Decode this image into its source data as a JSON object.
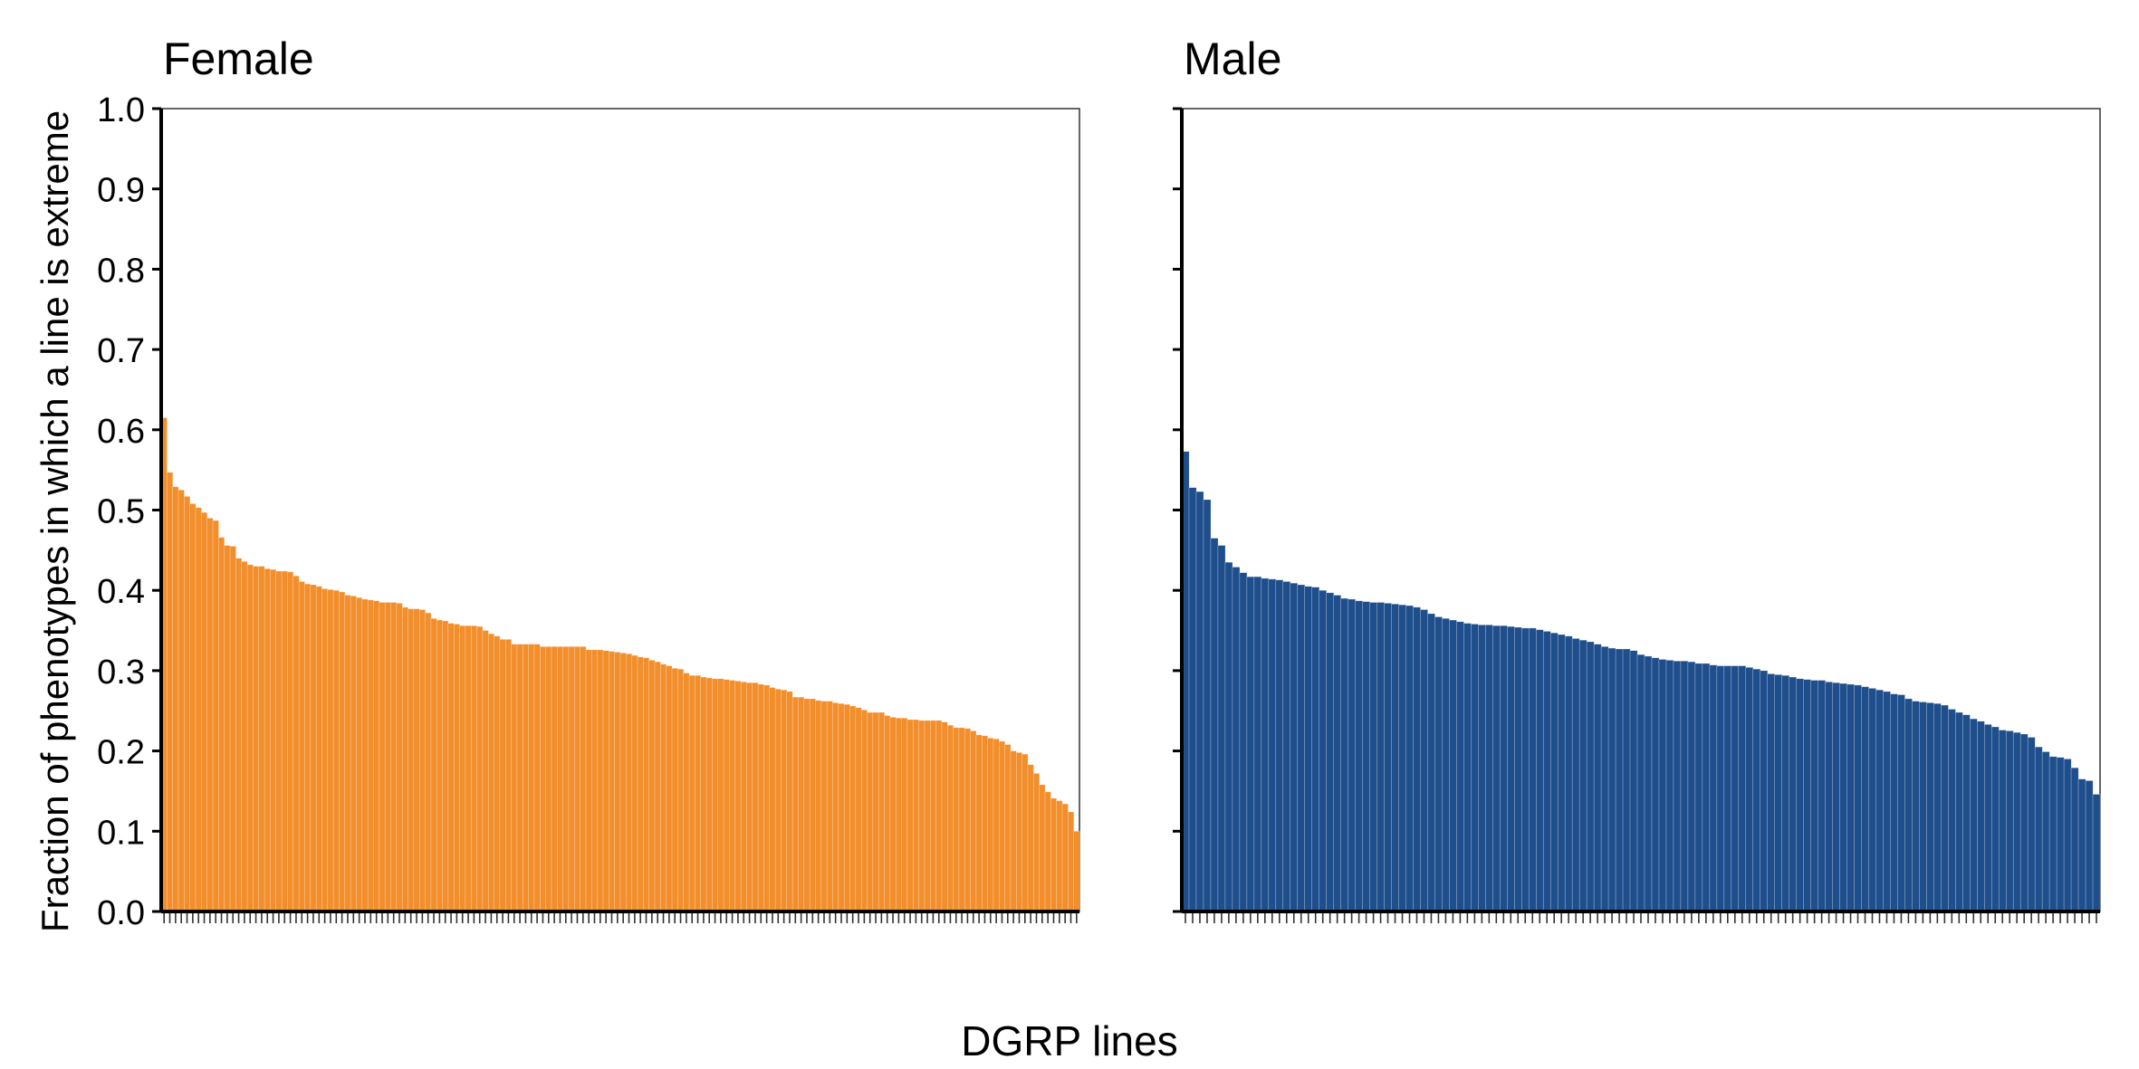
{
  "figure": {
    "y_label": "Fraction of phenotypes in which a line is extreme",
    "x_label": "DGRP lines"
  },
  "chart_data": [
    {
      "type": "bar",
      "title": "Female",
      "xlabel": "DGRP lines",
      "ylabel": "Fraction of phenotypes in which a line is extreme",
      "ylim": [
        0,
        1
      ],
      "yticks": [
        "0.0",
        "0.1",
        "0.2",
        "0.3",
        "0.4",
        "0.5",
        "0.6",
        "0.7",
        "0.8",
        "0.9",
        "1.0"
      ],
      "category_ticks": "unlabeled",
      "grid": false,
      "color": "#F28E2B",
      "values": [
        0.615,
        0.547,
        0.529,
        0.525,
        0.517,
        0.508,
        0.503,
        0.497,
        0.49,
        0.487,
        0.466,
        0.456,
        0.455,
        0.44,
        0.436,
        0.432,
        0.43,
        0.43,
        0.427,
        0.426,
        0.424,
        0.424,
        0.423,
        0.418,
        0.411,
        0.408,
        0.407,
        0.405,
        0.402,
        0.401,
        0.4,
        0.398,
        0.394,
        0.393,
        0.391,
        0.389,
        0.388,
        0.387,
        0.385,
        0.385,
        0.385,
        0.384,
        0.379,
        0.377,
        0.377,
        0.376,
        0.372,
        0.365,
        0.363,
        0.362,
        0.359,
        0.358,
        0.356,
        0.356,
        0.356,
        0.355,
        0.35,
        0.346,
        0.343,
        0.339,
        0.339,
        0.333,
        0.333,
        0.333,
        0.333,
        0.333,
        0.33,
        0.33,
        0.33,
        0.33,
        0.33,
        0.33,
        0.33,
        0.33,
        0.326,
        0.326,
        0.326,
        0.325,
        0.324,
        0.323,
        0.322,
        0.321,
        0.319,
        0.317,
        0.316,
        0.313,
        0.311,
        0.308,
        0.306,
        0.303,
        0.302,
        0.297,
        0.294,
        0.294,
        0.292,
        0.291,
        0.29,
        0.29,
        0.289,
        0.288,
        0.287,
        0.286,
        0.285,
        0.285,
        0.283,
        0.282,
        0.279,
        0.277,
        0.276,
        0.274,
        0.267,
        0.267,
        0.265,
        0.265,
        0.263,
        0.262,
        0.262,
        0.26,
        0.259,
        0.258,
        0.256,
        0.254,
        0.251,
        0.248,
        0.248,
        0.248,
        0.244,
        0.242,
        0.241,
        0.241,
        0.239,
        0.239,
        0.238,
        0.238,
        0.238,
        0.238,
        0.236,
        0.232,
        0.229,
        0.229,
        0.228,
        0.225,
        0.22,
        0.219,
        0.216,
        0.215,
        0.212,
        0.208,
        0.2,
        0.198,
        0.196,
        0.183,
        0.172,
        0.158,
        0.149,
        0.141,
        0.138,
        0.134,
        0.124,
        0.1
      ]
    },
    {
      "type": "bar",
      "title": "Male",
      "xlabel": "DGRP lines",
      "ylim": [
        0,
        1
      ],
      "yticks": [
        "0.0",
        "0.1",
        "0.2",
        "0.3",
        "0.4",
        "0.5",
        "0.6",
        "0.7",
        "0.8",
        "0.9",
        "1.0"
      ],
      "category_ticks": "unlabeled",
      "grid": false,
      "color": "#1F4E8C",
      "values": [
        0.573,
        0.528,
        0.523,
        0.513,
        0.465,
        0.456,
        0.435,
        0.429,
        0.422,
        0.417,
        0.417,
        0.415,
        0.414,
        0.413,
        0.411,
        0.409,
        0.407,
        0.405,
        0.404,
        0.4,
        0.397,
        0.394,
        0.39,
        0.389,
        0.387,
        0.386,
        0.385,
        0.385,
        0.384,
        0.383,
        0.382,
        0.381,
        0.379,
        0.376,
        0.371,
        0.367,
        0.365,
        0.363,
        0.361,
        0.359,
        0.358,
        0.357,
        0.357,
        0.356,
        0.356,
        0.355,
        0.354,
        0.353,
        0.353,
        0.351,
        0.349,
        0.347,
        0.345,
        0.343,
        0.34,
        0.338,
        0.336,
        0.333,
        0.33,
        0.328,
        0.327,
        0.327,
        0.325,
        0.32,
        0.318,
        0.316,
        0.314,
        0.313,
        0.312,
        0.312,
        0.311,
        0.309,
        0.309,
        0.307,
        0.306,
        0.306,
        0.306,
        0.306,
        0.304,
        0.302,
        0.3,
        0.296,
        0.295,
        0.294,
        0.292,
        0.29,
        0.289,
        0.288,
        0.288,
        0.286,
        0.285,
        0.284,
        0.283,
        0.282,
        0.28,
        0.278,
        0.276,
        0.274,
        0.271,
        0.27,
        0.265,
        0.262,
        0.261,
        0.26,
        0.259,
        0.257,
        0.252,
        0.248,
        0.245,
        0.24,
        0.237,
        0.233,
        0.23,
        0.226,
        0.225,
        0.223,
        0.221,
        0.217,
        0.205,
        0.199,
        0.193,
        0.192,
        0.19,
        0.179,
        0.165,
        0.163,
        0.146
      ]
    }
  ]
}
